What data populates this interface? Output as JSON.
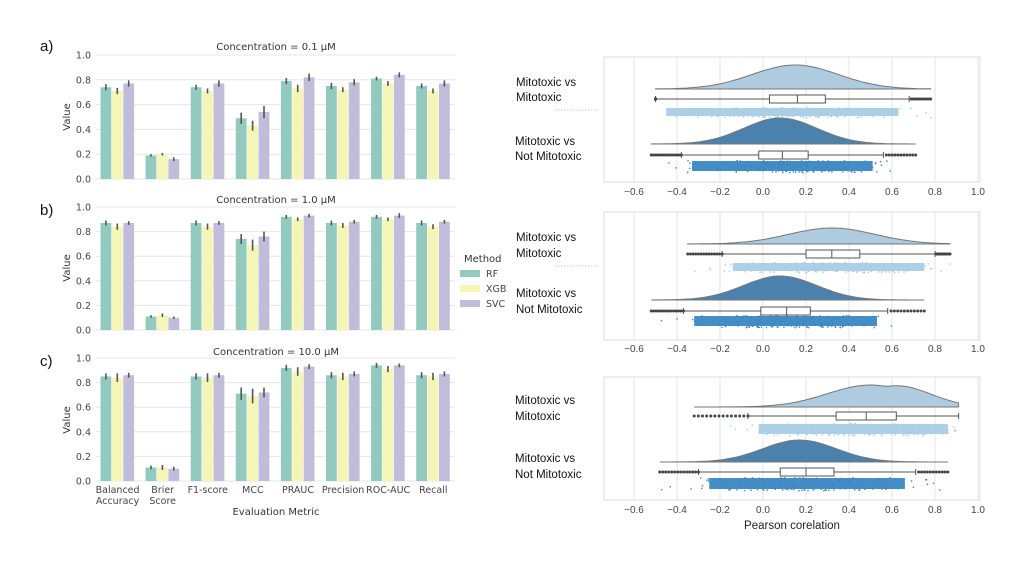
{
  "figure": {
    "panel_letters": [
      "a)",
      "b)",
      "c)"
    ]
  },
  "chart_data": [
    {
      "type": "bar",
      "title": "Concentration = 0.1 µM",
      "xlabel": "",
      "ylabel": "Value",
      "ylim": [
        0,
        1.0
      ],
      "yticks": [
        "0.0",
        "0.2",
        "0.4",
        "0.6",
        "0.8",
        "1.0"
      ],
      "categories": [
        "Balanced Accuracy",
        "Brier Score",
        "F1-score",
        "MCC",
        "PRAUC",
        "Precision",
        "ROC-AUC",
        "Recall"
      ],
      "grid": "horizontal",
      "series": [
        {
          "name": "RF",
          "values": [
            0.74,
            0.19,
            0.74,
            0.49,
            0.79,
            0.75,
            0.81,
            0.75
          ],
          "err": [
            0.025,
            0.01,
            0.02,
            0.045,
            0.025,
            0.025,
            0.015,
            0.02
          ]
        },
        {
          "name": "XGB",
          "values": [
            0.71,
            0.2,
            0.71,
            0.43,
            0.73,
            0.72,
            0.77,
            0.71
          ],
          "err": [
            0.025,
            0.01,
            0.02,
            0.04,
            0.03,
            0.02,
            0.02,
            0.02
          ]
        },
        {
          "name": "SVC",
          "values": [
            0.77,
            0.16,
            0.77,
            0.54,
            0.82,
            0.78,
            0.84,
            0.77
          ],
          "err": [
            0.025,
            0.015,
            0.025,
            0.05,
            0.03,
            0.025,
            0.02,
            0.025
          ]
        }
      ]
    },
    {
      "type": "bar",
      "title": "Concentration = 1.0 µM",
      "xlabel": "",
      "ylabel": "Value",
      "ylim": [
        0,
        1.0
      ],
      "yticks": [
        "0.0",
        "0.2",
        "0.4",
        "0.6",
        "0.8",
        "1.0"
      ],
      "categories": [
        "Balanced Accuracy",
        "Brier Score",
        "F1-score",
        "MCC",
        "PRAUC",
        "Precision",
        "ROC-AUC",
        "Recall"
      ],
      "grid": "horizontal",
      "series": [
        {
          "name": "RF",
          "values": [
            0.87,
            0.11,
            0.87,
            0.74,
            0.92,
            0.87,
            0.92,
            0.87
          ],
          "err": [
            0.02,
            0.01,
            0.02,
            0.04,
            0.015,
            0.02,
            0.015,
            0.02
          ]
        },
        {
          "name": "XGB",
          "values": [
            0.84,
            0.12,
            0.84,
            0.69,
            0.9,
            0.85,
            0.9,
            0.84
          ],
          "err": [
            0.025,
            0.015,
            0.025,
            0.045,
            0.015,
            0.02,
            0.015,
            0.02
          ]
        },
        {
          "name": "SVC",
          "values": [
            0.87,
            0.1,
            0.87,
            0.76,
            0.93,
            0.88,
            0.93,
            0.88
          ],
          "err": [
            0.015,
            0.01,
            0.015,
            0.04,
            0.015,
            0.015,
            0.02,
            0.015
          ]
        }
      ]
    },
    {
      "type": "bar",
      "title": "Concentration = 10.0 µM",
      "xlabel": "Evaluation Metric",
      "ylabel": "Value",
      "ylim": [
        0,
        1.0
      ],
      "yticks": [
        "0.0",
        "0.2",
        "0.4",
        "0.6",
        "0.8",
        "1.0"
      ],
      "categories": [
        "Balanced Accuracy",
        "Brier Score",
        "F1-score",
        "MCC",
        "PRAUC",
        "Precision",
        "ROC-AUC",
        "Recall"
      ],
      "category_labels": [
        [
          "Balanced",
          "Accuracy"
        ],
        [
          "Brier",
          "Score"
        ],
        [
          "F1-score"
        ],
        [
          "MCC"
        ],
        [
          "PRAUC"
        ],
        [
          "Precision"
        ],
        [
          "ROC-AUC"
        ],
        [
          "Recall"
        ]
      ],
      "grid": "horizontal",
      "series": [
        {
          "name": "RF",
          "values": [
            0.85,
            0.11,
            0.85,
            0.71,
            0.92,
            0.86,
            0.94,
            0.86
          ],
          "err": [
            0.025,
            0.015,
            0.025,
            0.05,
            0.025,
            0.025,
            0.02,
            0.025
          ]
        },
        {
          "name": "XGB",
          "values": [
            0.84,
            0.11,
            0.84,
            0.69,
            0.89,
            0.85,
            0.91,
            0.85
          ],
          "err": [
            0.035,
            0.02,
            0.035,
            0.06,
            0.035,
            0.03,
            0.025,
            0.03
          ]
        },
        {
          "name": "SVC",
          "values": [
            0.86,
            0.1,
            0.86,
            0.72,
            0.93,
            0.87,
            0.94,
            0.87
          ],
          "err": [
            0.02,
            0.015,
            0.02,
            0.04,
            0.02,
            0.02,
            0.015,
            0.02
          ]
        }
      ]
    },
    {
      "type": "raincloud",
      "xlabel": "",
      "xlim": [
        -0.75,
        1.0
      ],
      "xticks": [
        "−0.6",
        "−0.4",
        "−0.2",
        "0.0",
        "0.2",
        "0.4",
        "0.6",
        "0.8",
        "1.0"
      ],
      "groups": [
        {
          "label": [
            "Mitotoxic vs",
            "Mitotoxic"
          ],
          "color": "#aecbe0",
          "min": -0.5,
          "q1": 0.03,
          "median": 0.16,
          "q3": 0.29,
          "max": 0.68,
          "data_range": [
            -0.5,
            0.78
          ],
          "kde_peak": 0.15,
          "kde_sd": 0.2
        },
        {
          "label": [
            "Mitotoxic vs",
            "Not Mitotoxic"
          ],
          "color": "#4a81ad",
          "min": -0.38,
          "q1": -0.02,
          "median": 0.09,
          "q3": 0.21,
          "max": 0.56,
          "data_range": [
            -0.52,
            0.71
          ],
          "kde_peak": 0.08,
          "kde_sd": 0.17
        }
      ]
    },
    {
      "type": "raincloud",
      "xlabel": "",
      "xlim": [
        -0.75,
        1.0
      ],
      "xticks": [
        "−0.6",
        "−0.4",
        "−0.2",
        "0.0",
        "0.2",
        "0.4",
        "0.6",
        "0.8",
        "1.0"
      ],
      "groups": [
        {
          "label": [
            "Mitotoxic vs",
            "Mitotoxic"
          ],
          "color": "#aecbe0",
          "min": -0.19,
          "q1": 0.2,
          "median": 0.32,
          "q3": 0.45,
          "max": 0.8,
          "data_range": [
            -0.35,
            0.87
          ],
          "kde_peak": 0.32,
          "kde_sd": 0.2
        },
        {
          "label": [
            "Mitotoxic vs",
            "Not Mitotoxic"
          ],
          "color": "#4a81ad",
          "min": -0.37,
          "q1": -0.01,
          "median": 0.11,
          "q3": 0.22,
          "max": 0.58,
          "data_range": [
            -0.52,
            0.75
          ],
          "kde_peak": 0.08,
          "kde_sd": 0.17
        }
      ]
    },
    {
      "type": "raincloud",
      "xlabel": "Pearson corelation",
      "xlim": [
        -0.75,
        1.0
      ],
      "xticks": [
        "−0.6",
        "−0.4",
        "−0.2",
        "0.0",
        "0.2",
        "0.4",
        "0.6",
        "0.8",
        "1.0"
      ],
      "groups": [
        {
          "label": [
            "Mitotoxic vs",
            "Mitotoxic"
          ],
          "color": "#aecbe0",
          "min": -0.07,
          "q1": 0.34,
          "median": 0.48,
          "q3": 0.62,
          "max": 0.91,
          "data_range": [
            -0.32,
            0.91
          ],
          "kde_peak": 0.5,
          "kde_sd": 0.2
        },
        {
          "label": [
            "Mitotoxic vs",
            "Not Mitotoxic"
          ],
          "color": "#4a81ad",
          "min": -0.3,
          "q1": 0.08,
          "median": 0.2,
          "q3": 0.33,
          "max": 0.71,
          "data_range": [
            -0.48,
            0.86
          ],
          "kde_peak": 0.17,
          "kde_sd": 0.17
        }
      ]
    }
  ],
  "legend": {
    "title": "Method",
    "items": [
      {
        "label": "RF",
        "color": "#93cac0"
      },
      {
        "label": "XGB",
        "color": "#f5f5b8"
      },
      {
        "label": "SVC",
        "color": "#c1bcd9"
      }
    ]
  },
  "colors": {
    "rf": "#93cac0",
    "xgb": "#f5f5b8",
    "svc": "#c1bcd9",
    "light_blue": "#aecbe0",
    "dark_blue": "#4a81ad",
    "rain_light": "#a9cce6",
    "rain_dark": "#3a87c4"
  }
}
